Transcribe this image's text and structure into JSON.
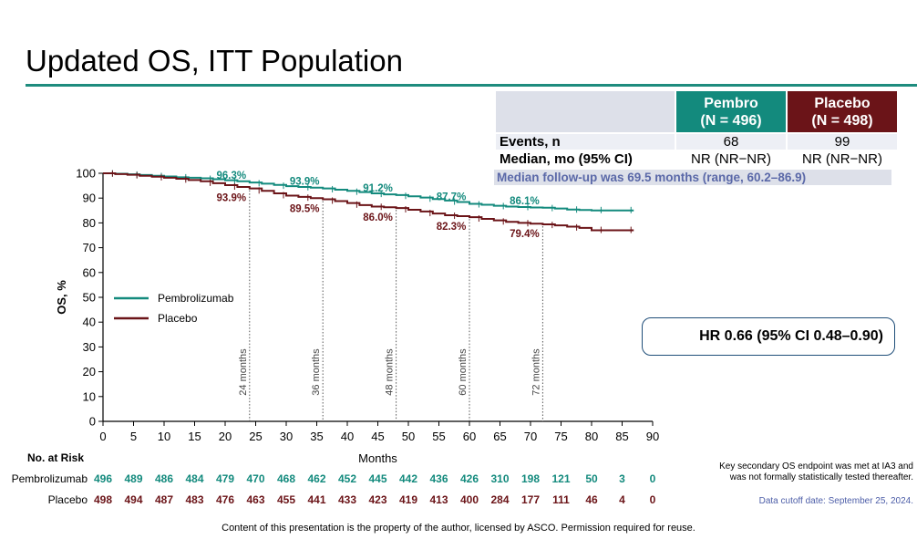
{
  "title": "Updated OS, ITT Population",
  "stats_table": {
    "col1": {
      "name": "Pembro",
      "n": "(N = 496)"
    },
    "col2": {
      "name": "Placebo",
      "n": "(N = 498)"
    },
    "rows": [
      {
        "label": "Events, n",
        "v1": "68",
        "v2": "99"
      },
      {
        "label": "Median, mo (95% CI)",
        "v1": "NR (NR−NR)",
        "v2": "NR (NR−NR)"
      }
    ],
    "followup": "Median follow-up was 69.5 months (range, 60.2–86.9)"
  },
  "hr_text": "HR 0.66 (95% CI 0.48–0.90)",
  "side_note": [
    "Key secondary OS endpoint was met at IA3 and",
    "was not formally statistically tested thereafter."
  ],
  "cutoff": "Data cutoff date: September 25, 2024.",
  "footer": "Content of this presentation is the property of the author, licensed by ASCO. Permission required for reuse.",
  "risk": {
    "title": "No. at Risk",
    "rows": [
      {
        "label": "Pembrolizumab",
        "color": "#138a7d",
        "values": [
          496,
          489,
          486,
          484,
          479,
          470,
          468,
          462,
          452,
          445,
          442,
          436,
          426,
          310,
          198,
          121,
          50,
          3,
          0
        ]
      },
      {
        "label": "Placebo",
        "color": "#6b1418",
        "values": [
          498,
          494,
          487,
          483,
          476,
          463,
          455,
          441,
          433,
          423,
          419,
          413,
          400,
          284,
          177,
          111,
          46,
          4,
          0
        ]
      }
    ]
  },
  "chart_data": {
    "type": "line",
    "xlabel": "Months",
    "ylabel": "OS, %",
    "xlim": [
      0,
      90
    ],
    "ylim": [
      0,
      100
    ],
    "xticks": [
      0,
      5,
      10,
      15,
      20,
      25,
      30,
      35,
      40,
      45,
      50,
      55,
      60,
      65,
      70,
      75,
      80,
      85,
      90
    ],
    "yticks": [
      0,
      10,
      20,
      30,
      40,
      50,
      60,
      70,
      80,
      90,
      100
    ],
    "legend_position": "center-left",
    "series": [
      {
        "name": "Pembrolizumab",
        "color": "#138a7d",
        "x": [
          0,
          2,
          4,
          6,
          8,
          10,
          12,
          14,
          16,
          18,
          20,
          22,
          24,
          26,
          28,
          30,
          32,
          34,
          36,
          38,
          40,
          42,
          44,
          46,
          48,
          50,
          52,
          54,
          56,
          58,
          60,
          62,
          64,
          66,
          68,
          70,
          72,
          74,
          76,
          78,
          80,
          82,
          84,
          86.9
        ],
        "y": [
          100,
          99.8,
          99.6,
          99.3,
          99.0,
          98.7,
          98.4,
          98.2,
          98.0,
          97.6,
          97.2,
          96.8,
          96.3,
          95.8,
          95.3,
          94.8,
          94.5,
          94.2,
          93.9,
          93.4,
          92.9,
          92.4,
          91.9,
          91.5,
          91.2,
          90.7,
          90.2,
          89.6,
          89.0,
          88.4,
          87.7,
          87.3,
          86.9,
          86.6,
          86.4,
          86.2,
          86.1,
          85.8,
          85.4,
          85.2,
          85.0,
          85.0,
          85.0,
          85.0
        ]
      },
      {
        "name": "Placebo",
        "color": "#6b1418",
        "x": [
          0,
          2,
          4,
          6,
          8,
          10,
          12,
          14,
          16,
          18,
          20,
          22,
          24,
          26,
          28,
          30,
          32,
          34,
          36,
          38,
          40,
          42,
          44,
          46,
          48,
          50,
          52,
          54,
          56,
          58,
          60,
          62,
          64,
          66,
          68,
          70,
          72,
          74,
          76,
          78,
          80,
          82,
          84,
          86.9
        ],
        "y": [
          100,
          99.7,
          99.4,
          99.0,
          98.6,
          98.2,
          97.8,
          97.3,
          96.8,
          96.0,
          95.2,
          94.5,
          93.9,
          92.9,
          91.9,
          91.0,
          90.5,
          90.0,
          89.5,
          88.8,
          88.0,
          87.2,
          86.6,
          86.3,
          86.0,
          85.3,
          84.6,
          83.8,
          83.1,
          82.7,
          82.3,
          81.6,
          81.0,
          80.4,
          80.0,
          79.7,
          79.4,
          79.0,
          78.5,
          78.0,
          77.0,
          77.0,
          77.0,
          77.0
        ]
      }
    ],
    "landmarks": [
      {
        "month": 24,
        "label": "24 months",
        "pembro": "96.3%",
        "placebo": "93.9%",
        "pembro_val": 96.3,
        "placebo_val": 93.9
      },
      {
        "month": 36,
        "label": "36 months",
        "pembro": "93.9%",
        "placebo": "89.5%",
        "pembro_val": 93.9,
        "placebo_val": 89.5
      },
      {
        "month": 48,
        "label": "48 months",
        "pembro": "91.2%",
        "placebo": "86.0%",
        "pembro_val": 91.2,
        "placebo_val": 86.0
      },
      {
        "month": 60,
        "label": "60 months",
        "pembro": "87.7%",
        "placebo": "82.3%",
        "pembro_val": 87.7,
        "placebo_val": 82.3
      },
      {
        "month": 72,
        "label": "72 months",
        "pembro": "86.1%",
        "placebo": "79.4%",
        "pembro_val": 86.1,
        "placebo_val": 79.4
      }
    ]
  }
}
